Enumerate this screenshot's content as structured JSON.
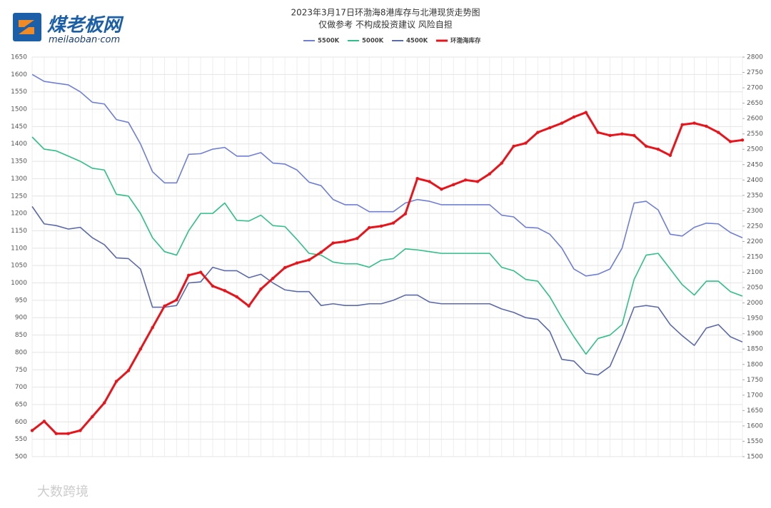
{
  "logo": {
    "name": "煤老板网",
    "site": "meilaoban·com"
  },
  "watermark": "大数跨境",
  "chart_data": {
    "type": "line",
    "title": "2023年3月17日环渤海8港库存与北港现货走势图",
    "subtitle": "仅做参考 不构成投资建议 风险自担",
    "categories": [
      null,
      null,
      null,
      null,
      null,
      null,
      null,
      null,
      null,
      null,
      null,
      null,
      null,
      null,
      null,
      null,
      null,
      null,
      null,
      null,
      null,
      null,
      null,
      null,
      null,
      null,
      null,
      null,
      null,
      null,
      null,
      null,
      null,
      null,
      null,
      null,
      null,
      null,
      null,
      null,
      null,
      null,
      null,
      null,
      null,
      null,
      null,
      null,
      null,
      null,
      null,
      null,
      null,
      null,
      null,
      null,
      null,
      null,
      null,
      null
    ],
    "ylim": [
      500,
      1650
    ],
    "yticks": [
      500,
      550,
      600,
      650,
      700,
      750,
      800,
      850,
      900,
      950,
      1000,
      1050,
      1100,
      1150,
      1200,
      1250,
      1300,
      1350,
      1400,
      1450,
      1500,
      1550,
      1600,
      1650
    ],
    "y2lim": [
      1500,
      2800
    ],
    "y2ticks": [
      1500,
      1550,
      1600,
      1650,
      1700,
      1750,
      1800,
      1850,
      1900,
      1950,
      2000,
      2050,
      2100,
      2150,
      2200,
      2250,
      2300,
      2350,
      2400,
      2450,
      2500,
      2550,
      2600,
      2650,
      2700,
      2750,
      2800
    ],
    "grid": true,
    "legend": "top",
    "series": [
      {
        "name": "5500K",
        "color": "#6f7fd6",
        "values": [
          1600,
          1580,
          1575,
          1570,
          1550,
          1520,
          1515,
          1470,
          1462,
          1400,
          1320,
          1288,
          1288,
          1370,
          1372,
          1385,
          1390,
          1365,
          1365,
          1375,
          1345,
          1342,
          1325,
          1290,
          1280,
          1240,
          1225,
          1225,
          1205,
          1205,
          1205,
          1230,
          1240,
          1235,
          1225,
          1225,
          1225,
          1225,
          1225,
          1195,
          1190,
          1160,
          1158,
          1140,
          1100,
          1040,
          1020,
          1025,
          1040,
          1100,
          1230,
          1235,
          1210,
          1140,
          1135,
          1160,
          1172,
          1170,
          1145,
          1130
        ]
      },
      {
        "name": "5000K",
        "color": "#2fbf87",
        "values": [
          1420,
          1385,
          1380,
          1365,
          1350,
          1330,
          1325,
          1255,
          1250,
          1200,
          1130,
          1090,
          1080,
          1150,
          1200,
          1200,
          1230,
          1180,
          1178,
          1195,
          1165,
          1162,
          1125,
          1085,
          1080,
          1060,
          1055,
          1055,
          1045,
          1065,
          1070,
          1098,
          1095,
          1090,
          1085,
          1085,
          1085,
          1085,
          1085,
          1045,
          1035,
          1010,
          1005,
          960,
          900,
          845,
          795,
          840,
          850,
          880,
          1010,
          1080,
          1085,
          1040,
          995,
          965,
          1005,
          1005,
          975,
          962
        ]
      },
      {
        "name": "4500K",
        "color": "#5b6aa8",
        "values": [
          1220,
          1170,
          1165,
          1155,
          1160,
          1130,
          1110,
          1072,
          1070,
          1040,
          930,
          930,
          935,
          1000,
          1003,
          1045,
          1035,
          1035,
          1015,
          1025,
          1000,
          980,
          975,
          975,
          935,
          940,
          935,
          935,
          940,
          940,
          950,
          965,
          965,
          945,
          940,
          940,
          940,
          940,
          940,
          925,
          915,
          900,
          895,
          860,
          780,
          775,
          740,
          735,
          760,
          840,
          930,
          935,
          930,
          880,
          848,
          820,
          870,
          880,
          845,
          830
        ]
      },
      {
        "name": "环渤海库存",
        "color": "#e8141b",
        "axis": "y2",
        "values": [
          1585,
          1615,
          1575,
          1575,
          1585,
          1630,
          1675,
          1745,
          1780,
          1850,
          1920,
          1990,
          2010,
          2090,
          2100,
          2055,
          2040,
          2020,
          1990,
          2045,
          2080,
          2115,
          2130,
          2140,
          2165,
          2195,
          2200,
          2210,
          2245,
          2250,
          2260,
          2290,
          2405,
          2395,
          2370,
          2385,
          2400,
          2395,
          2420,
          2455,
          2510,
          2520,
          2555,
          2570,
          2585,
          2605,
          2620,
          2555,
          2545,
          2550,
          2545,
          2510,
          2500,
          2480,
          2580,
          2585,
          2575,
          2555,
          2525,
          2530
        ]
      }
    ]
  }
}
